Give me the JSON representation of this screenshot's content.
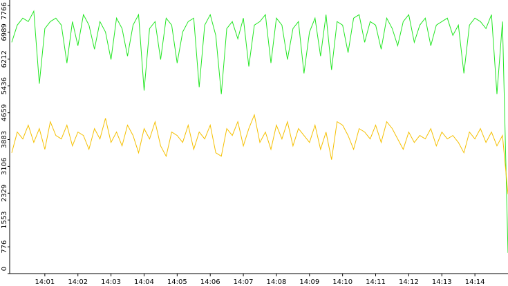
{
  "chart_data": {
    "type": "line",
    "xlim": [
      0,
      90
    ],
    "xticks": [
      {
        "value": 6,
        "label": "14:01"
      },
      {
        "value": 12,
        "label": "14:02"
      },
      {
        "value": 18,
        "label": "14:03"
      },
      {
        "value": 24,
        "label": "14:04"
      },
      {
        "value": 30,
        "label": "14:05"
      },
      {
        "value": 36,
        "label": "14:06"
      },
      {
        "value": 42,
        "label": "14:07"
      },
      {
        "value": 48,
        "label": "14:08"
      },
      {
        "value": 54,
        "label": "14:09"
      },
      {
        "value": 60,
        "label": "14:10"
      },
      {
        "value": 66,
        "label": "14:11"
      },
      {
        "value": 72,
        "label": "14:12"
      },
      {
        "value": 78,
        "label": "14:13"
      },
      {
        "value": 84,
        "label": "14:14"
      }
    ],
    "ylim": [
      0,
      7766
    ],
    "yticks": [
      0,
      776,
      1553,
      2329,
      3106,
      3883,
      4659,
      5436,
      6212,
      6989,
      7766
    ],
    "series": [
      {
        "color": "#22e622",
        "values": [
          6700,
          7200,
          7400,
          7300,
          7600,
          5500,
          7100,
          7300,
          7400,
          7200,
          6100,
          7300,
          6600,
          7500,
          7200,
          6500,
          7300,
          7000,
          6200,
          7400,
          7100,
          6300,
          7200,
          7500,
          5300,
          7100,
          7300,
          6200,
          7400,
          7200,
          6100,
          7000,
          7300,
          7400,
          5400,
          7200,
          7500,
          6900,
          5200,
          7100,
          7300,
          6800,
          7400,
          6000,
          7200,
          7300,
          7500,
          6100,
          7400,
          7200,
          6200,
          7100,
          7300,
          5800,
          7000,
          7400,
          6300,
          7500,
          5900,
          7300,
          7200,
          6400,
          7400,
          7500,
          6700,
          7300,
          7200,
          6500,
          7400,
          7100,
          6600,
          7300,
          7500,
          6700,
          7200,
          7400,
          6600,
          7200,
          7300,
          7400,
          6900,
          7200,
          5800,
          7200,
          7400,
          7300,
          7100,
          7500,
          5200,
          7300,
          600
        ]
      },
      {
        "color": "#f5c000",
        "values": [
          3500,
          4100,
          3900,
          4300,
          3800,
          4200,
          3600,
          4400,
          4000,
          3900,
          4300,
          3700,
          4100,
          4000,
          3600,
          4200,
          3900,
          4500,
          3800,
          4100,
          3700,
          4300,
          4000,
          3500,
          4200,
          3900,
          4400,
          3700,
          3400,
          4100,
          4000,
          3800,
          4300,
          3600,
          4100,
          3900,
          4300,
          3500,
          3400,
          4200,
          4000,
          4400,
          3700,
          4200,
          4600,
          3800,
          4100,
          3600,
          4300,
          3900,
          4400,
          3700,
          4200,
          4000,
          3800,
          4300,
          3600,
          4100,
          3300,
          4400,
          4300,
          4000,
          3600,
          4200,
          4100,
          3900,
          4300,
          3800,
          4400,
          4200,
          3900,
          3600,
          4100,
          3800,
          4000,
          3900,
          4200,
          3700,
          4100,
          3900,
          4000,
          3800,
          3500,
          4100,
          3900,
          4200,
          3800,
          4100,
          3700,
          4000,
          2300
        ]
      }
    ]
  }
}
